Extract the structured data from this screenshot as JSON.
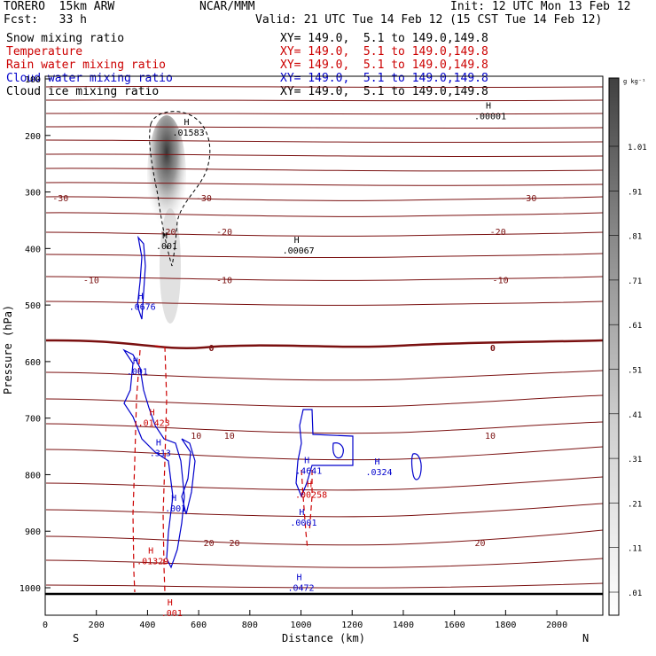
{
  "header": {
    "model": "TORERO  15km ARW",
    "org": "NCAR/MMM",
    "init": "Init: 12 UTC Mon 13 Feb 12",
    "fcst": "Fcst:   33 h",
    "valid": "Valid: 21 UTC Tue 14 Feb 12 (15 CST Tue 14 Feb 12)"
  },
  "fields": [
    {
      "name": "Snow mixing ratio",
      "xy": "XY= 149.0,  5.1 to 149.0,149.8",
      "color": "#000000"
    },
    {
      "name": "Temperature",
      "xy": "XY= 149.0,  5.1 to 149.0,149.8",
      "color": "#cc0000"
    },
    {
      "name": "Rain water mixing ratio",
      "xy": "XY= 149.0,  5.1 to 149.0,149.8",
      "color": "#cc0000"
    },
    {
      "name": "Cloud water mixing ratio",
      "xy": "XY= 149.0,  5.1 to 149.0,149.8",
      "color": "#0000cc"
    },
    {
      "name": "Cloud ice mixing ratio",
      "xy": "XY= 149.0,  5.1 to 149.0,149.8",
      "color": "#000000"
    }
  ],
  "colors": {
    "temperature": "#7a1010",
    "rain": "#cc0000",
    "cloud_water": "#0000cc",
    "axis": "#000000"
  },
  "chart_data": {
    "type": "contour-cross-section",
    "xlabel": "Distance (km)",
    "ylabel": "Pressure (hPa)",
    "xlim": [
      0,
      2180
    ],
    "ylim": [
      1050,
      100
    ],
    "x_ticks": [
      0,
      200,
      400,
      600,
      800,
      1000,
      1200,
      1400,
      1600,
      1800,
      2000
    ],
    "y_ticks": [
      100,
      200,
      300,
      400,
      500,
      600,
      700,
      800,
      900,
      1000
    ],
    "left_end": "S",
    "right_end": "N",
    "colorbar": {
      "unit": "g kg⁻¹",
      "ticks": [
        ".01",
        ".11",
        ".21",
        ".31",
        ".41",
        ".51",
        ".61",
        ".71",
        ".81",
        ".91",
        "1.01"
      ]
    },
    "temperature_isotherms": [
      {
        "label": "-30",
        "positions_km": [
          60,
          620,
          1890
        ],
        "pressure": 310
      },
      {
        "label": "-20",
        "positions_km": [
          480,
          700,
          1770
        ],
        "pressure": 370
      },
      {
        "label": "-10",
        "positions_km": [
          180,
          700,
          1780
        ],
        "pressure": 455
      },
      {
        "label": "0",
        "positions_km": [
          650,
          1750
        ],
        "pressure": 575,
        "bold": true
      },
      {
        "label": "10",
        "positions_km": [
          590,
          720,
          1740
        ],
        "pressure": 730
      },
      {
        "label": "20",
        "positions_km": [
          640,
          740,
          1700
        ],
        "pressure": 920
      }
    ],
    "maxima_labels": [
      {
        "text": ".01583",
        "x_km": 560,
        "pressure": 197,
        "color": "#000000"
      },
      {
        "text": ".00001",
        "x_km": 1740,
        "pressure": 168,
        "color": "#000000"
      },
      {
        "text": ".001",
        "x_km": 475,
        "pressure": 398,
        "color": "#000000"
      },
      {
        "text": ".00067",
        "x_km": 990,
        "pressure": 406,
        "color": "#000000"
      },
      {
        "text": ".0676",
        "x_km": 380,
        "pressure": 505,
        "color": "#0000cc"
      },
      {
        "text": ".001",
        "x_km": 360,
        "pressure": 620,
        "color": "#0000cc"
      },
      {
        "text": ".01423",
        "x_km": 425,
        "pressure": 711,
        "color": "#cc0000"
      },
      {
        "text": ".313",
        "x_km": 450,
        "pressure": 764,
        "color": "#0000cc"
      },
      {
        "text": ".001",
        "x_km": 510,
        "pressure": 862,
        "color": "#0000cc"
      },
      {
        "text": ".4641",
        "x_km": 1030,
        "pressure": 795,
        "color": "#0000cc"
      },
      {
        "text": ".0324",
        "x_km": 1305,
        "pressure": 798,
        "color": "#0000cc"
      },
      {
        "text": ".00258",
        "x_km": 1040,
        "pressure": 838,
        "color": "#cc0000"
      },
      {
        "text": ".0001",
        "x_km": 1010,
        "pressure": 887,
        "color": "#0000cc"
      },
      {
        "text": ".01329",
        "x_km": 420,
        "pressure": 955,
        "color": "#cc0000"
      },
      {
        "text": ".0472",
        "x_km": 1000,
        "pressure": 1002,
        "color": "#0000cc"
      },
      {
        "text": ".001",
        "x_km": 495,
        "pressure": 1047,
        "color": "#cc0000"
      }
    ]
  }
}
